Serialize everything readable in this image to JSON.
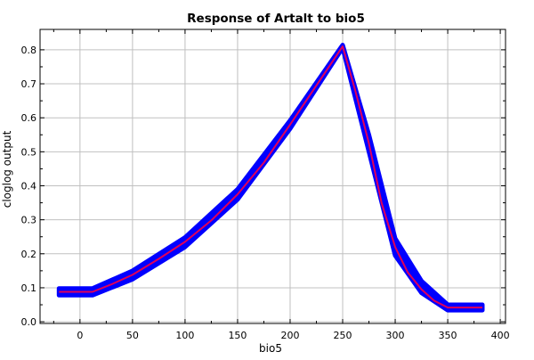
{
  "chart_data": {
    "type": "line",
    "title": "Response of Artalt to bio5",
    "xlabel": "bio5",
    "ylabel": "cloglog output",
    "xlim": [
      -38,
      405
    ],
    "ylim": [
      -0.005,
      0.86
    ],
    "xticks": [
      0,
      50,
      100,
      150,
      200,
      250,
      300,
      350,
      400
    ],
    "yticks": [
      0.0,
      0.1,
      0.2,
      0.3,
      0.4,
      0.5,
      0.6,
      0.7,
      0.8
    ],
    "ytick_labels": [
      "0.0",
      "0.1",
      "0.2",
      "0.3",
      "0.4",
      "0.5",
      "0.6",
      "0.7",
      "0.8"
    ],
    "grid": true,
    "legend": "none",
    "series": [
      {
        "role": "variability band",
        "color": "#0000ff",
        "x": [
          -20,
          12,
          50,
          100,
          150,
          200,
          250,
          275,
          300,
          325,
          350,
          383
        ],
        "upper": [
          0.098,
          0.098,
          0.15,
          0.248,
          0.39,
          0.592,
          0.814,
          0.55,
          0.245,
          0.12,
          0.05,
          0.05
        ],
        "lower": [
          0.078,
          0.078,
          0.125,
          0.22,
          0.36,
          0.568,
          0.806,
          0.5,
          0.195,
          0.085,
          0.034,
          0.034
        ]
      },
      {
        "role": "mean response",
        "color": "#e0005a",
        "x": [
          -20,
          12,
          30,
          50,
          75,
          100,
          125,
          150,
          175,
          200,
          225,
          250,
          262,
          275,
          287,
          300,
          312,
          325,
          337,
          350,
          383
        ],
        "y": [
          0.088,
          0.088,
          0.11,
          0.138,
          0.185,
          0.235,
          0.298,
          0.375,
          0.468,
          0.58,
          0.695,
          0.81,
          0.68,
          0.525,
          0.35,
          0.22,
          0.145,
          0.095,
          0.062,
          0.042,
          0.042
        ]
      }
    ]
  },
  "colors": {
    "band": "#0000ff",
    "mean": "#e0005a",
    "grid": "#c0c0c0",
    "frame": "#000000"
  }
}
